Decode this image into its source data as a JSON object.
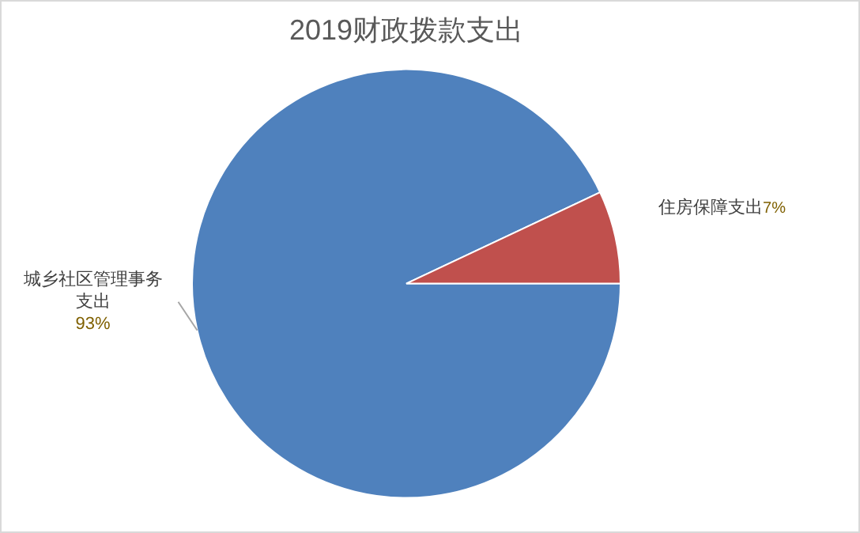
{
  "chart_data": {
    "type": "pie",
    "title": "2019财政拨款支出",
    "categories": [
      "城乡社区管理事务支出",
      "住房保障支出"
    ],
    "values": [
      93,
      7
    ],
    "colors": [
      "#4f81bd",
      "#c0504d"
    ],
    "value_labels": [
      "93%",
      "7%"
    ],
    "legend": false
  }
}
